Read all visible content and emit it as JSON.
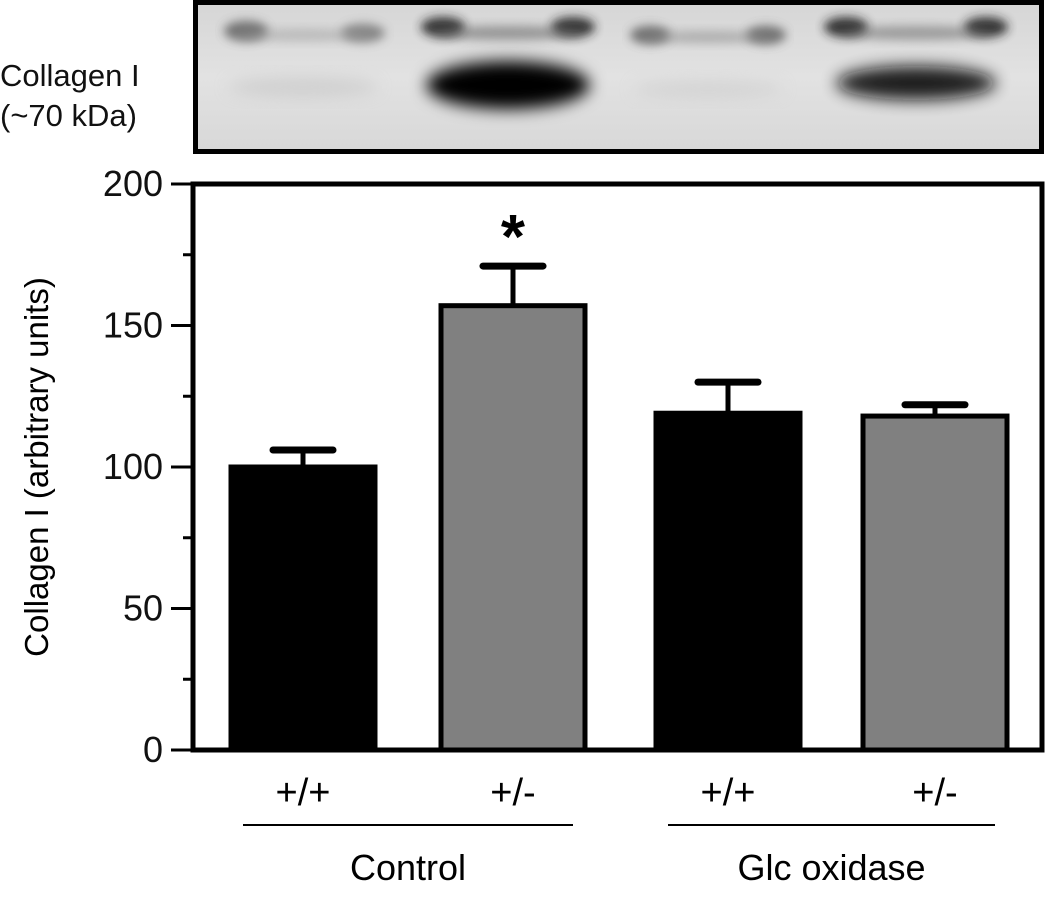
{
  "blot": {
    "label_line1": "Collagen I",
    "label_line2": "(~70 kDa)"
  },
  "chart_data": {
    "type": "bar",
    "categories": [
      "+/+",
      "+/-",
      "+/+",
      "+/-"
    ],
    "groups": [
      {
        "label": "Control",
        "members": [
          0,
          1
        ]
      },
      {
        "label": "Glc oxidase",
        "members": [
          2,
          3
        ]
      }
    ],
    "values": [
      100,
      157,
      119,
      118
    ],
    "errors": [
      6,
      14,
      11,
      4
    ],
    "bar_colors": [
      "#000000",
      "#808080",
      "#000000",
      "#808080"
    ],
    "annotations": [
      {
        "category_index": 1,
        "text": "*"
      }
    ],
    "ylabel": "Collagen I (arbitrary units)",
    "xlabel": "",
    "title": "",
    "ylim": [
      0,
      200
    ],
    "yticks": [
      0,
      50,
      100,
      150,
      200
    ],
    "ytick_labels": [
      "0",
      "50",
      "100",
      "150",
      "200"
    ],
    "grid": false,
    "legend": "none"
  }
}
